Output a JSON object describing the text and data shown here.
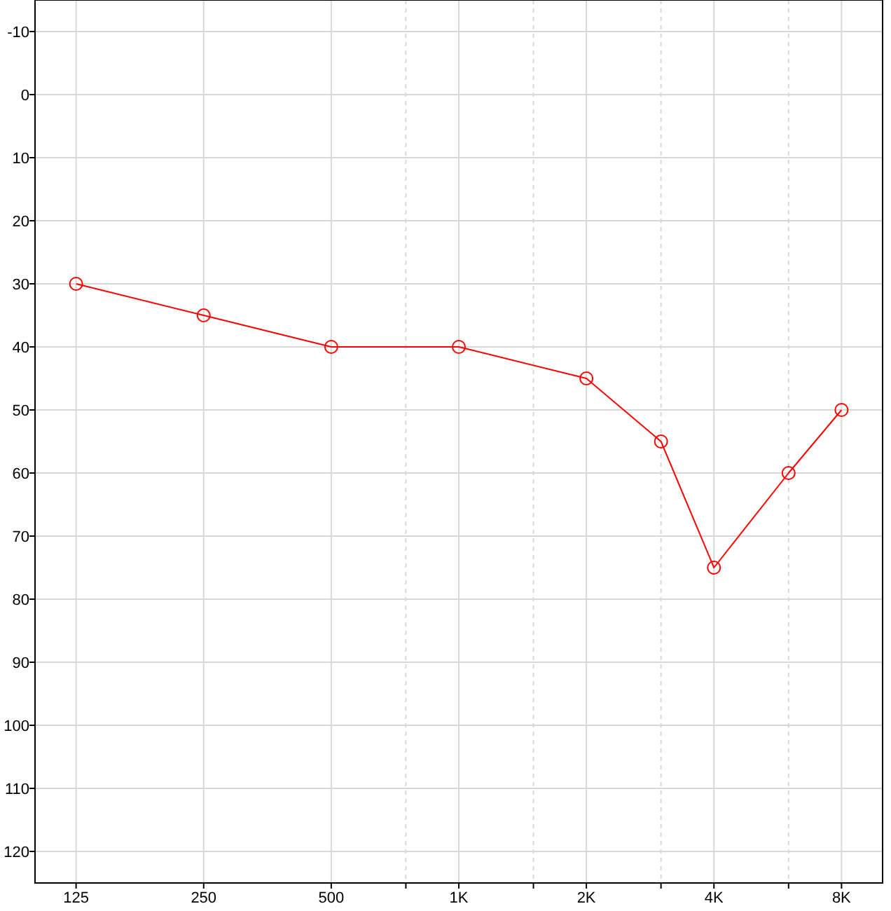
{
  "chart_data": {
    "type": "line",
    "log": "x",
    "grid": true,
    "marker": "circle",
    "line_style": "solid",
    "x": [
      125,
      250,
      500,
      1000,
      2000,
      3000,
      4000,
      6000,
      8000
    ],
    "series": [
      {
        "color": "#ff0000",
        "values": [
          30,
          35,
          40,
          40,
          45,
          55,
          75,
          60,
          50
        ]
      }
    ],
    "xlim": [
      100,
      10000
    ],
    "ylim": [
      125,
      -15
    ],
    "xticks": [
      125,
      250,
      500,
      {
        "value": 750,
        "label": null
      },
      {
        "value": 1000,
        "label": "1K"
      },
      {
        "value": 1500,
        "label": null
      },
      {
        "value": 2000,
        "label": "2K"
      },
      {
        "value": 3000,
        "label": null
      },
      {
        "value": 4000,
        "label": "4K"
      },
      {
        "value": 6000,
        "label": null
      },
      {
        "value": 8000,
        "label": "8K"
      }
    ],
    "yticks": [
      -10,
      0,
      10,
      20,
      30,
      40,
      50,
      60,
      70,
      80,
      90,
      100,
      110,
      120
    ]
  }
}
